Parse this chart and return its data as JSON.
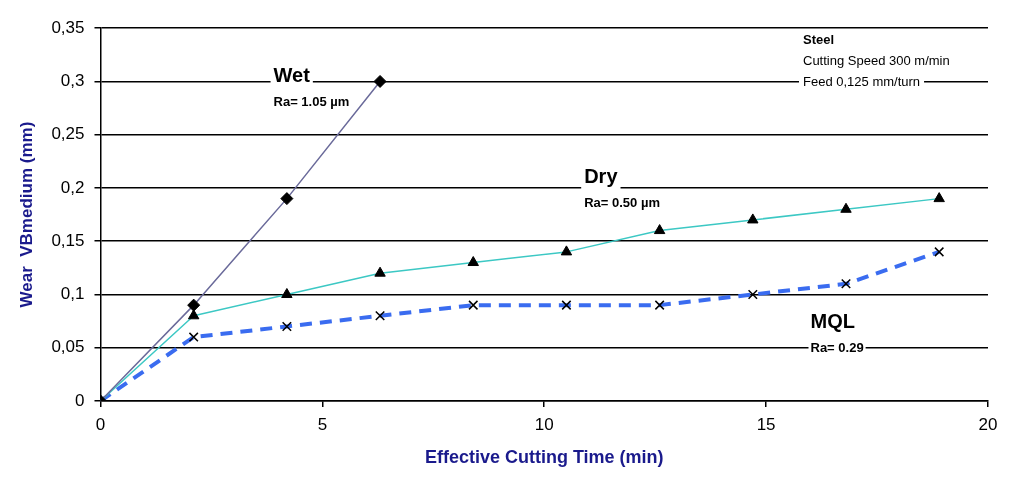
{
  "chart_data": {
    "type": "line",
    "xlabel": "Effective Cutting Time (min)",
    "ylabel": "Wear  VBmedium (mm)",
    "xlim": [
      0,
      20
    ],
    "xticks": [
      0,
      5,
      10,
      15,
      20
    ],
    "ylim": [
      0,
      0.35
    ],
    "yticks": [
      0,
      {
        "value": 0.05,
        "label": "0,05"
      },
      {
        "value": 0.1,
        "label": "0,1"
      },
      {
        "value": 0.15,
        "label": "0,15"
      },
      {
        "value": 0.2,
        "label": "0,2"
      },
      {
        "value": 0.25,
        "label": "0,25"
      },
      {
        "value": 0.3,
        "label": "0,3"
      },
      {
        "value": 0.35,
        "label": "0,35"
      }
    ],
    "grid": "y",
    "legend": false,
    "series": [
      {
        "name": "Wet",
        "color": "#6a6a9a",
        "marker": "diamond",
        "line_style": "solid",
        "x": [
          0,
          2.1,
          4.2,
          6.3
        ],
        "values": [
          0,
          0.09,
          0.19,
          0.3
        ]
      },
      {
        "name": "Dry",
        "color": "#3cc8c4",
        "marker": "triangle",
        "line_style": "solid",
        "x": [
          0,
          2.1,
          4.2,
          6.3,
          8.4,
          10.5,
          12.6,
          14.7,
          16.8,
          18.9
        ],
        "values": [
          0,
          0.08,
          0.1,
          0.12,
          0.13,
          0.14,
          0.16,
          0.17,
          0.18,
          0.19
        ]
      },
      {
        "name": "MQL",
        "color": "#3a6cf0",
        "marker": "cross",
        "line_style": "dashed",
        "x": [
          0,
          2.1,
          4.2,
          6.3,
          8.4,
          10.5,
          12.6,
          14.7,
          16.8,
          18.9
        ],
        "values": [
          0,
          0.06,
          0.07,
          0.08,
          0.09,
          0.09,
          0.09,
          0.1,
          0.11,
          0.14
        ]
      }
    ],
    "annotations": [
      "Ra= 1.05 µm",
      "Ra= 0.50 µm",
      "Ra= 0.29",
      "Steel",
      "Cutting Speed 300 m/min",
      "Feed 0,125 mm/turn"
    ]
  }
}
